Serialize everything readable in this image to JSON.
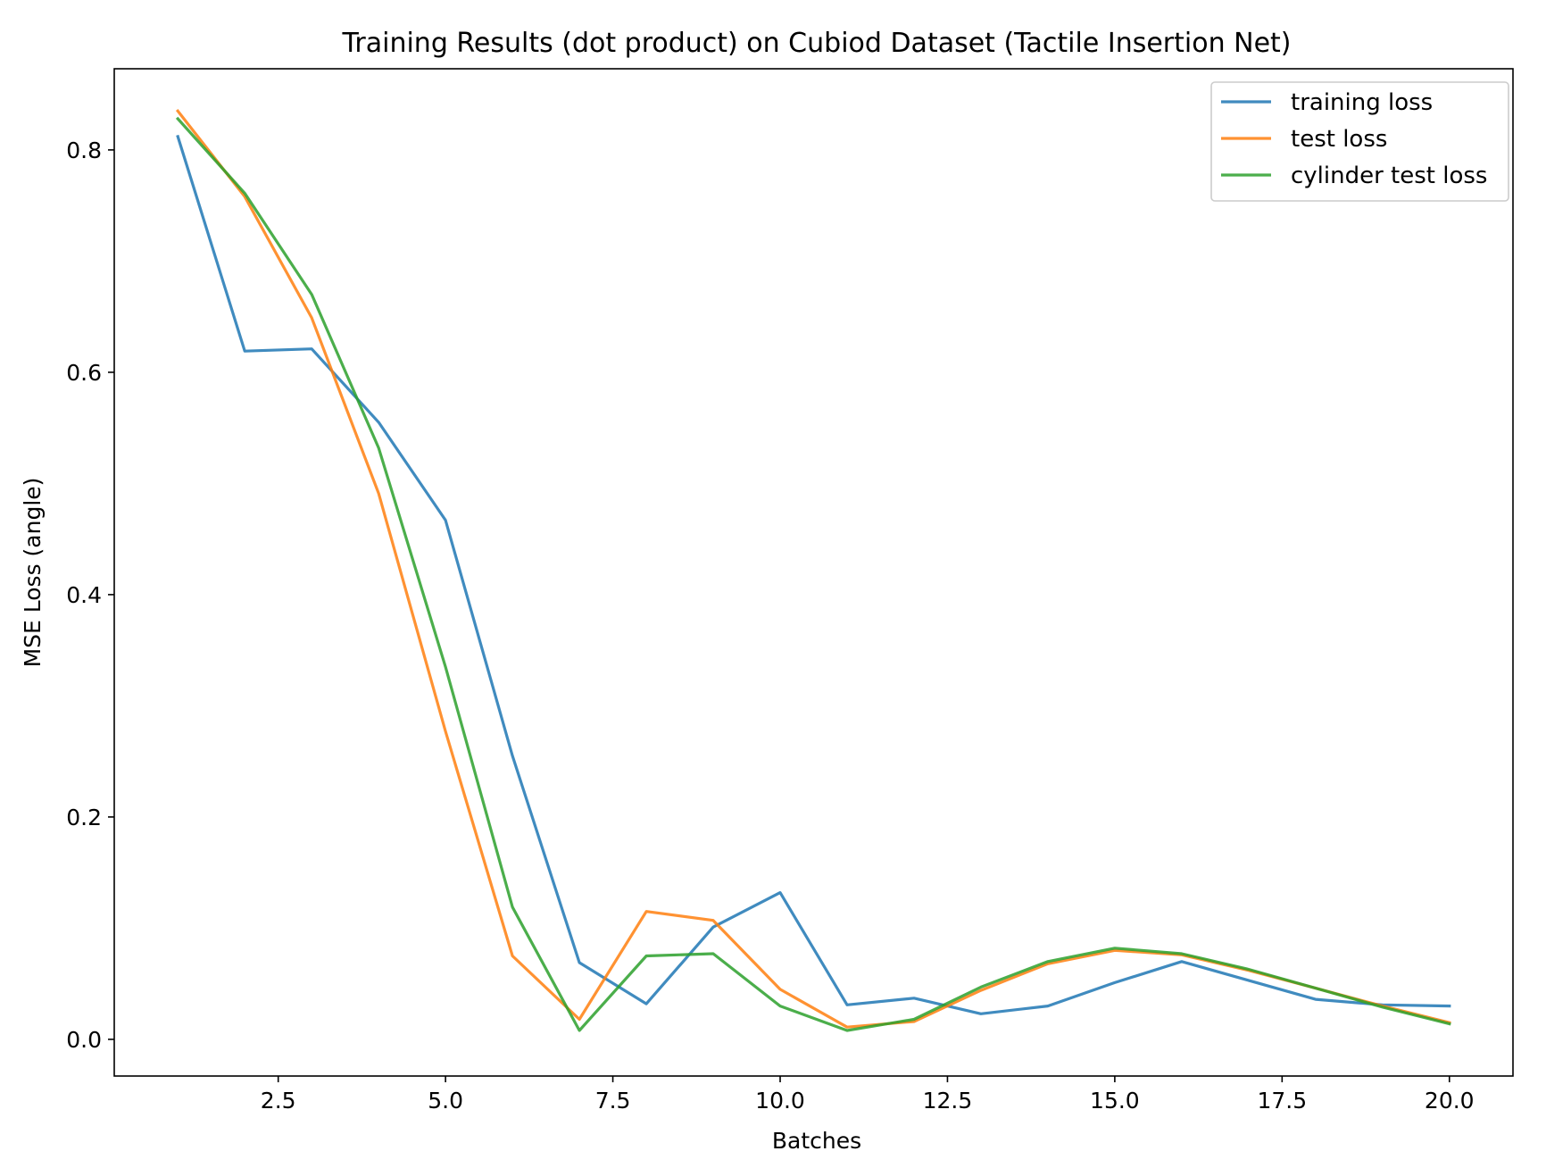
{
  "chart_data": {
    "type": "line",
    "title": "Training Results (dot product) on Cubiod Dataset (Tactile Insertion Net)",
    "xlabel": "Batches",
    "ylabel": "MSE Loss (angle)",
    "xlim": [
      0.05,
      20.95
    ],
    "ylim": [
      -0.033,
      0.873
    ],
    "xticks": [
      2.5,
      5.0,
      7.5,
      10.0,
      12.5,
      15.0,
      17.5,
      20.0
    ],
    "xtick_labels": [
      "2.5",
      "5.0",
      "7.5",
      "10.0",
      "12.5",
      "15.0",
      "17.5",
      "20.0"
    ],
    "yticks": [
      0.0,
      0.2,
      0.4,
      0.6,
      0.8
    ],
    "ytick_labels": [
      "0.0",
      "0.2",
      "0.4",
      "0.6",
      "0.8"
    ],
    "grid": false,
    "legend_position": "top-right",
    "x": [
      1,
      2,
      3,
      4,
      5,
      6,
      7,
      8,
      9,
      10,
      11,
      12,
      13,
      14,
      15,
      16,
      17,
      18,
      19,
      20
    ],
    "series": [
      {
        "name": "training loss",
        "color": "#1f77b4",
        "values": [
          0.812,
          0.619,
          0.621,
          0.555,
          0.467,
          0.255,
          0.069,
          0.032,
          0.101,
          0.132,
          0.031,
          0.037,
          0.023,
          0.03,
          0.051,
          0.07,
          0.053,
          0.036,
          0.031,
          0.03
        ]
      },
      {
        "name": "test loss",
        "color": "#ff7f0e",
        "values": [
          0.835,
          0.758,
          0.649,
          0.491,
          0.277,
          0.075,
          0.018,
          0.115,
          0.107,
          0.045,
          0.011,
          0.016,
          0.044,
          0.068,
          0.08,
          0.076,
          0.062,
          0.046,
          0.03,
          0.015
        ]
      },
      {
        "name": "cylinder test loss",
        "color": "#2ca02c",
        "values": [
          0.828,
          0.761,
          0.67,
          0.532,
          0.335,
          0.119,
          0.008,
          0.075,
          0.077,
          0.03,
          0.008,
          0.018,
          0.047,
          0.07,
          0.082,
          0.077,
          0.063,
          0.046,
          0.029,
          0.014
        ]
      }
    ]
  }
}
